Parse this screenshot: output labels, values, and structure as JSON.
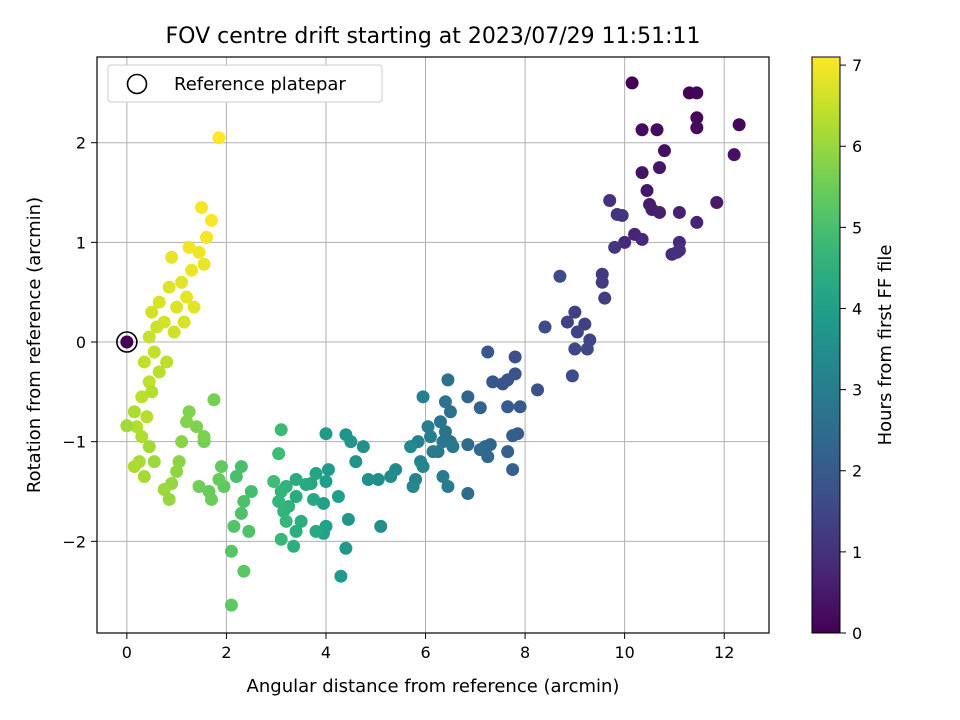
{
  "chart_data": {
    "type": "scatter",
    "title": "FOV centre drift starting at 2023/07/29 11:51:11",
    "xlabel": "Angular distance from reference (arcmin)",
    "ylabel": "Rotation from reference (arcmin)",
    "xlim": [
      -0.6,
      12.9
    ],
    "ylim": [
      -2.92,
      2.86
    ],
    "xticks": [
      0,
      2,
      4,
      6,
      8,
      10,
      12
    ],
    "yticks": [
      -2,
      -1,
      0,
      1,
      2
    ],
    "grid": true,
    "legend": {
      "position": "top-left",
      "entries": [
        "Reference platepar"
      ]
    },
    "colorbar": {
      "label": "Hours from first FF file",
      "range": [
        0,
        7.1
      ],
      "ticks": [
        0,
        1,
        2,
        3,
        4,
        5,
        6,
        7
      ],
      "colormap": "viridis"
    },
    "reference_point": {
      "x": 0.0,
      "y": 0.0
    },
    "points": [
      [
        10.15,
        2.6,
        0.0
      ],
      [
        11.3,
        2.5,
        0.05
      ],
      [
        11.45,
        2.5,
        0.08
      ],
      [
        12.3,
        2.18,
        0.12
      ],
      [
        11.45,
        2.25,
        0.15
      ],
      [
        11.45,
        2.15,
        0.18
      ],
      [
        10.35,
        2.13,
        0.22
      ],
      [
        10.65,
        2.13,
        0.25
      ],
      [
        10.8,
        1.92,
        0.3
      ],
      [
        12.2,
        1.88,
        0.33
      ],
      [
        10.35,
        1.7,
        0.38
      ],
      [
        10.7,
        1.75,
        0.42
      ],
      [
        10.45,
        1.52,
        0.46
      ],
      [
        11.85,
        1.4,
        0.5
      ],
      [
        10.5,
        1.38,
        0.55
      ],
      [
        10.55,
        1.33,
        0.58
      ],
      [
        10.7,
        1.3,
        0.62
      ],
      [
        11.1,
        1.3,
        0.65
      ],
      [
        11.45,
        1.2,
        0.7
      ],
      [
        10.2,
        1.08,
        0.74
      ],
      [
        10.35,
        1.03,
        0.78
      ],
      [
        10.0,
        1.0,
        0.82
      ],
      [
        11.1,
        1.0,
        0.86
      ],
      [
        10.95,
        0.88,
        0.9
      ],
      [
        11.05,
        0.9,
        0.94
      ],
      [
        11.1,
        0.92,
        0.98
      ],
      [
        9.7,
        1.42,
        1.02
      ],
      [
        9.85,
        1.28,
        1.06
      ],
      [
        9.95,
        1.27,
        1.1
      ],
      [
        9.8,
        0.95,
        1.14
      ],
      [
        9.55,
        0.68,
        1.18
      ],
      [
        9.55,
        0.6,
        1.22
      ],
      [
        9.6,
        0.44,
        1.26
      ],
      [
        9.0,
        0.3,
        1.3
      ],
      [
        9.2,
        0.18,
        1.35
      ],
      [
        8.85,
        0.2,
        1.38
      ],
      [
        9.05,
        0.1,
        1.42
      ],
      [
        9.3,
        0.02,
        1.46
      ],
      [
        9.25,
        -0.07,
        1.5
      ],
      [
        9.0,
        -0.07,
        1.54
      ],
      [
        8.95,
        -0.34,
        1.58
      ],
      [
        8.7,
        0.66,
        1.62
      ],
      [
        8.4,
        0.15,
        1.66
      ],
      [
        8.25,
        -0.48,
        1.7
      ],
      [
        7.8,
        -0.15,
        1.74
      ],
      [
        7.8,
        -0.32,
        1.78
      ],
      [
        7.65,
        -0.38,
        1.82
      ],
      [
        7.55,
        -0.42,
        1.86
      ],
      [
        7.35,
        -0.4,
        1.9
      ],
      [
        7.25,
        -0.1,
        1.94
      ],
      [
        7.9,
        -0.65,
        1.98
      ],
      [
        7.65,
        -0.65,
        2.02
      ],
      [
        7.85,
        -0.92,
        2.06
      ],
      [
        7.75,
        -0.94,
        2.1
      ],
      [
        7.65,
        -1.1,
        2.14
      ],
      [
        7.75,
        -1.28,
        2.18
      ],
      [
        7.1,
        -0.66,
        2.22
      ],
      [
        6.85,
        -0.55,
        2.26
      ],
      [
        7.3,
        -1.03,
        2.3
      ],
      [
        7.2,
        -1.05,
        2.34
      ],
      [
        7.25,
        -1.15,
        2.38
      ],
      [
        7.1,
        -1.08,
        2.42
      ],
      [
        6.85,
        -1.03,
        2.46
      ],
      [
        6.85,
        -1.52,
        2.5
      ],
      [
        6.5,
        -1.0,
        2.54
      ],
      [
        6.5,
        -0.7,
        2.58
      ],
      [
        6.45,
        -0.38,
        2.62
      ],
      [
        6.4,
        -0.6,
        2.66
      ],
      [
        6.3,
        -0.8,
        2.7
      ],
      [
        6.4,
        -0.9,
        2.74
      ],
      [
        6.35,
        -1.0,
        2.78
      ],
      [
        6.25,
        -1.1,
        2.82
      ],
      [
        6.55,
        -1.05,
        2.86
      ],
      [
        6.15,
        -1.1,
        2.9
      ],
      [
        6.45,
        -1.45,
        2.94
      ],
      [
        6.35,
        -1.35,
        2.98
      ],
      [
        6.05,
        -0.85,
        3.02
      ],
      [
        6.1,
        -0.95,
        3.06
      ],
      [
        5.95,
        -0.55,
        3.1
      ],
      [
        5.85,
        -1.0,
        3.14
      ],
      [
        5.9,
        -1.2,
        3.18
      ],
      [
        5.8,
        -1.38,
        3.22
      ],
      [
        5.75,
        -1.45,
        3.26
      ],
      [
        5.95,
        -1.25,
        3.3
      ],
      [
        5.7,
        -1.05,
        3.34
      ],
      [
        5.4,
        -1.28,
        3.38
      ],
      [
        5.3,
        -1.35,
        3.42
      ],
      [
        5.05,
        -1.38,
        3.46
      ],
      [
        5.1,
        -1.85,
        3.5
      ],
      [
        4.85,
        -1.38,
        3.54
      ],
      [
        4.75,
        -1.05,
        3.58
      ],
      [
        4.6,
        -1.2,
        3.62
      ],
      [
        4.5,
        -1.0,
        3.66
      ],
      [
        4.4,
        -0.93,
        3.7
      ],
      [
        4.45,
        -1.78,
        3.74
      ],
      [
        4.4,
        -2.07,
        3.78
      ],
      [
        4.3,
        -2.35,
        3.82
      ],
      [
        4.0,
        -0.92,
        3.86
      ],
      [
        4.05,
        -1.28,
        3.9
      ],
      [
        4.0,
        -1.4,
        3.94
      ],
      [
        4.25,
        -1.55,
        3.98
      ],
      [
        3.95,
        -1.62,
        4.02
      ],
      [
        4.0,
        -1.85,
        4.06
      ],
      [
        3.95,
        -1.92,
        4.1
      ],
      [
        3.8,
        -1.32,
        4.14
      ],
      [
        3.7,
        -1.42,
        4.18
      ],
      [
        3.75,
        -1.58,
        4.22
      ],
      [
        3.8,
        -1.9,
        4.26
      ],
      [
        3.6,
        -1.43,
        4.3
      ],
      [
        3.4,
        -1.38,
        4.34
      ],
      [
        3.4,
        -1.55,
        4.38
      ],
      [
        3.5,
        -1.8,
        4.42
      ],
      [
        3.4,
        -1.9,
        4.46
      ],
      [
        3.35,
        -2.05,
        4.5
      ],
      [
        3.2,
        -1.45,
        4.54
      ],
      [
        3.25,
        -1.65,
        4.58
      ],
      [
        3.15,
        -1.7,
        4.62
      ],
      [
        3.1,
        -1.5,
        4.66
      ],
      [
        3.05,
        -1.6,
        4.7
      ],
      [
        3.2,
        -1.8,
        4.74
      ],
      [
        3.1,
        -1.98,
        4.78
      ],
      [
        3.1,
        -0.88,
        4.82
      ],
      [
        3.05,
        -1.12,
        4.86
      ],
      [
        2.95,
        -1.4,
        4.9
      ],
      [
        2.5,
        -1.5,
        4.94
      ],
      [
        2.3,
        -1.25,
        4.98
      ],
      [
        2.2,
        -1.35,
        5.02
      ],
      [
        2.35,
        -1.6,
        5.06
      ],
      [
        2.3,
        -1.72,
        5.1
      ],
      [
        2.45,
        -1.9,
        5.14
      ],
      [
        2.15,
        -1.85,
        5.18
      ],
      [
        2.1,
        -2.1,
        5.22
      ],
      [
        2.35,
        -2.3,
        5.26
      ],
      [
        2.1,
        -2.64,
        5.3
      ],
      [
        1.95,
        -1.45,
        5.34
      ],
      [
        1.9,
        -1.25,
        5.38
      ],
      [
        1.85,
        -1.38,
        5.42
      ],
      [
        1.65,
        -1.5,
        5.46
      ],
      [
        1.7,
        -1.58,
        5.5
      ],
      [
        1.45,
        -1.45,
        5.54
      ],
      [
        1.55,
        -1.0,
        5.58
      ],
      [
        1.75,
        -0.58,
        5.62
      ],
      [
        1.55,
        -0.95,
        5.66
      ],
      [
        1.4,
        -0.85,
        5.7
      ],
      [
        1.25,
        -0.7,
        5.74
      ],
      [
        1.2,
        -0.8,
        5.78
      ],
      [
        1.1,
        -1.0,
        5.82
      ],
      [
        1.05,
        -1.2,
        5.86
      ],
      [
        1.0,
        -1.3,
        5.9
      ],
      [
        0.9,
        -1.42,
        5.94
      ],
      [
        0.85,
        -1.58,
        5.98
      ],
      [
        0.75,
        -1.48,
        6.02
      ],
      [
        0.55,
        -1.2,
        6.06
      ],
      [
        0.45,
        -1.05,
        6.1
      ],
      [
        0.35,
        -1.35,
        6.14
      ],
      [
        0.25,
        -1.2,
        6.18
      ],
      [
        0.15,
        -1.25,
        6.22
      ],
      [
        0.3,
        -0.95,
        6.26
      ],
      [
        0.2,
        -0.85,
        6.3
      ],
      [
        0.4,
        -0.75,
        6.34
      ],
      [
        0.3,
        -0.55,
        6.38
      ],
      [
        0.45,
        -0.4,
        6.42
      ],
      [
        0.35,
        -0.2,
        6.46
      ],
      [
        0.55,
        -0.1,
        6.5
      ],
      [
        0.45,
        0.05,
        6.54
      ],
      [
        0.6,
        0.15,
        6.58
      ],
      [
        0.5,
        0.3,
        6.62
      ],
      [
        0.75,
        0.2,
        6.66
      ],
      [
        0.65,
        0.4,
        6.7
      ],
      [
        0.85,
        0.55,
        6.74
      ],
      [
        1.0,
        0.35,
        6.78
      ],
      [
        1.1,
        0.6,
        6.82
      ],
      [
        1.2,
        0.45,
        6.86
      ],
      [
        1.3,
        0.72,
        6.9
      ],
      [
        1.45,
        0.9,
        6.94
      ],
      [
        1.6,
        1.05,
        6.98
      ],
      [
        1.55,
        0.78,
        6.92
      ],
      [
        1.5,
        1.35,
        7.02
      ],
      [
        1.7,
        1.22,
        7.06
      ],
      [
        1.85,
        2.05,
        7.1
      ],
      [
        0.0,
        -0.84,
        6.1
      ],
      [
        0.15,
        -0.7,
        6.2
      ],
      [
        0.5,
        -0.5,
        6.3
      ],
      [
        0.65,
        -0.3,
        6.36
      ],
      [
        0.8,
        -0.2,
        6.4
      ],
      [
        0.95,
        0.1,
        6.6
      ],
      [
        1.15,
        0.2,
        6.7
      ],
      [
        1.35,
        0.35,
        6.8
      ],
      [
        0.9,
        0.85,
        6.88
      ],
      [
        1.25,
        0.95,
        6.96
      ]
    ]
  }
}
